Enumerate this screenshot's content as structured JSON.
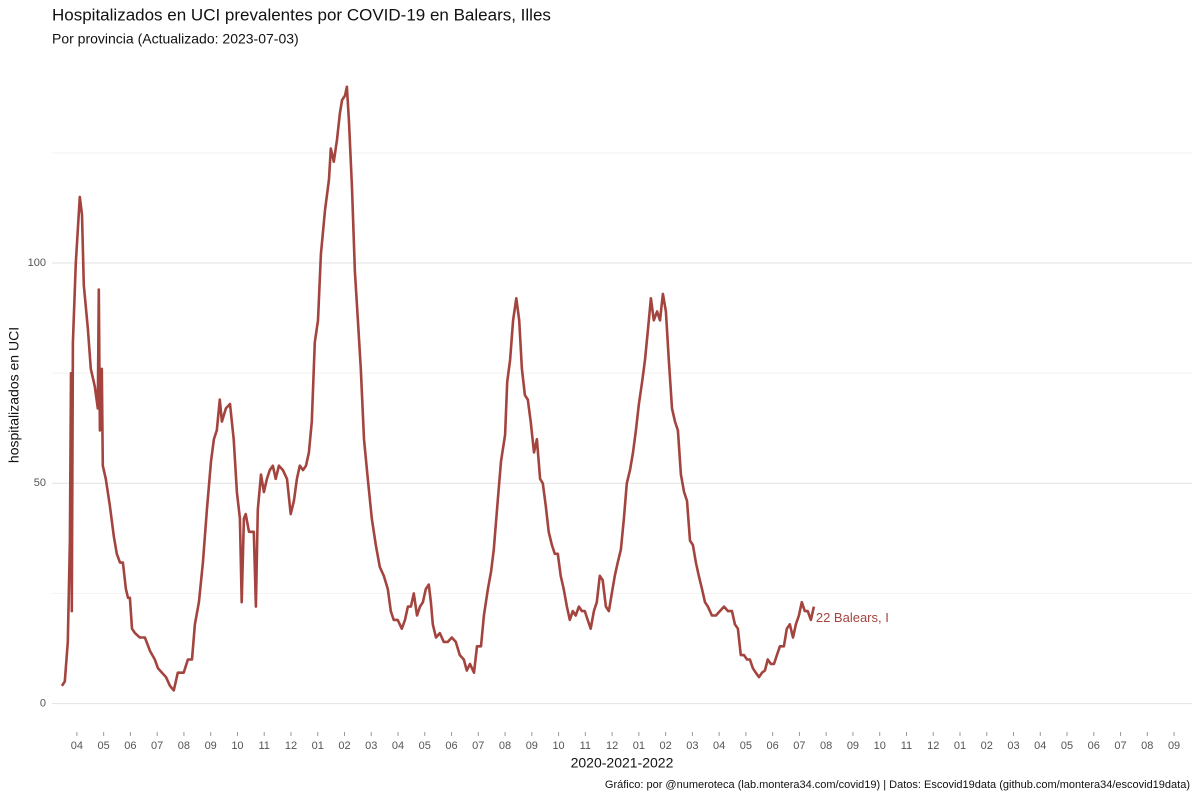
{
  "chart_data": {
    "type": "line",
    "title": "Hospitalizados en UCI prevalentes por COVID-19 en Balears, Illes",
    "subtitle": "Por provincia  (Actualizado: 2023-07-03)",
    "x_label": "2020-2021-2022",
    "y_label": "hospitalizados en UCI",
    "caption": "Gráfico: por @numeroteca (lab.montera34.com/covid19) | Datos: Escovid19data (github.com/montera34/escovid19data)",
    "xlim": [
      3.07,
      45.67
    ],
    "ylim": [
      -6,
      142
    ],
    "yticks": [
      0,
      50,
      100
    ],
    "minor_yticks": [
      25,
      75,
      125
    ],
    "grid": true,
    "xticks": [
      {
        "value": 4,
        "label": "04"
      },
      {
        "value": 5,
        "label": "05"
      },
      {
        "value": 6,
        "label": "06"
      },
      {
        "value": 7,
        "label": "07"
      },
      {
        "value": 8,
        "label": "08"
      },
      {
        "value": 9,
        "label": "09"
      },
      {
        "value": 10,
        "label": "10"
      },
      {
        "value": 11,
        "label": "11"
      },
      {
        "value": 12,
        "label": "12"
      },
      {
        "value": 13,
        "label": "01"
      },
      {
        "value": 14,
        "label": "02"
      },
      {
        "value": 15,
        "label": "03"
      },
      {
        "value": 16,
        "label": "04"
      },
      {
        "value": 17,
        "label": "05"
      },
      {
        "value": 18,
        "label": "06"
      },
      {
        "value": 19,
        "label": "07"
      },
      {
        "value": 20,
        "label": "08"
      },
      {
        "value": 21,
        "label": "09"
      },
      {
        "value": 22,
        "label": "10"
      },
      {
        "value": 23,
        "label": "11"
      },
      {
        "value": 24,
        "label": "12"
      },
      {
        "value": 25,
        "label": "01"
      },
      {
        "value": 26,
        "label": "02"
      },
      {
        "value": 27,
        "label": "03"
      },
      {
        "value": 28,
        "label": "04"
      },
      {
        "value": 29,
        "label": "05"
      },
      {
        "value": 30,
        "label": "06"
      },
      {
        "value": 31,
        "label": "07"
      },
      {
        "value": 32,
        "label": "08"
      },
      {
        "value": 33,
        "label": "09"
      },
      {
        "value": 34,
        "label": "10"
      },
      {
        "value": 35,
        "label": "11"
      },
      {
        "value": 36,
        "label": "12"
      },
      {
        "value": 37,
        "label": "01"
      },
      {
        "value": 38,
        "label": "02"
      },
      {
        "value": 39,
        "label": "03"
      },
      {
        "value": 40,
        "label": "04"
      },
      {
        "value": 41,
        "label": "05"
      },
      {
        "value": 42,
        "label": "06"
      },
      {
        "value": 43,
        "label": "07"
      },
      {
        "value": 44,
        "label": "08"
      },
      {
        "value": 45,
        "label": "09"
      }
    ],
    "x": [
      3.44,
      3.55,
      3.66,
      3.74,
      3.78,
      3.81,
      3.85,
      3.96,
      4.11,
      4.19,
      4.26,
      4.41,
      4.52,
      4.67,
      4.78,
      4.82,
      4.86,
      4.93,
      4.97,
      5.08,
      5.23,
      5.38,
      5.49,
      5.61,
      5.72,
      5.83,
      5.91,
      5.98,
      6.06,
      6.17,
      6.35,
      6.54,
      6.73,
      6.91,
      7.03,
      7.18,
      7.33,
      7.48,
      7.62,
      7.77,
      7.99,
      8.15,
      8.3,
      8.41,
      8.56,
      8.71,
      8.86,
      9.01,
      9.12,
      9.23,
      9.34,
      9.42,
      9.57,
      9.72,
      9.86,
      9.98,
      10.09,
      10.16,
      10.24,
      10.31,
      10.43,
      10.54,
      10.61,
      10.69,
      10.76,
      10.88,
      10.99,
      11.1,
      11.21,
      11.32,
      11.43,
      11.55,
      11.7,
      11.85,
      11.99,
      12.11,
      12.22,
      12.33,
      12.45,
      12.56,
      12.67,
      12.78,
      12.89,
      13.01,
      13.12,
      13.27,
      13.42,
      13.49,
      13.6,
      13.72,
      13.83,
      13.91,
      14.02,
      14.09,
      14.17,
      14.28,
      14.39,
      14.5,
      14.61,
      14.73,
      14.87,
      15.02,
      15.17,
      15.32,
      15.47,
      15.62,
      15.73,
      15.84,
      15.99,
      16.14,
      16.26,
      16.37,
      16.48,
      16.59,
      16.71,
      16.82,
      16.93,
      17.04,
      17.15,
      17.23,
      17.3,
      17.42,
      17.56,
      17.71,
      17.86,
      18.01,
      18.16,
      18.31,
      18.46,
      18.57,
      18.69,
      18.84,
      18.95,
      19.1,
      19.21,
      19.36,
      19.48,
      19.58,
      19.7,
      19.85,
      20.0,
      20.08,
      20.19,
      20.3,
      20.42,
      20.53,
      20.63,
      20.74,
      20.85,
      20.96,
      21.08,
      21.19,
      21.31,
      21.41,
      21.52,
      21.63,
      21.75,
      21.86,
      21.97,
      22.08,
      22.19,
      22.31,
      22.42,
      22.53,
      22.64,
      22.76,
      22.87,
      22.98,
      23.09,
      23.2,
      23.32,
      23.43,
      23.54,
      23.65,
      23.77,
      23.88,
      23.99,
      24.1,
      24.21,
      24.33,
      24.44,
      24.55,
      24.67,
      24.78,
      24.89,
      25.0,
      25.12,
      25.23,
      25.34,
      25.45,
      25.56,
      25.68,
      25.79,
      25.9,
      26.01,
      26.12,
      26.24,
      26.35,
      26.46,
      26.57,
      26.69,
      26.8,
      26.91,
      27.02,
      27.13,
      27.24,
      27.36,
      27.47,
      27.58,
      27.73,
      27.88,
      28.03,
      28.18,
      28.33,
      28.48,
      28.59,
      28.7,
      28.81,
      28.93,
      29.04,
      29.15,
      29.26,
      29.37,
      29.49,
      29.6,
      29.71,
      29.82,
      29.93,
      30.05,
      30.16,
      30.27,
      30.42,
      30.53,
      30.64,
      30.76,
      30.87,
      30.98,
      31.09,
      31.2,
      31.31,
      31.43,
      31.54
    ],
    "series": [
      {
        "name": "22 Balears, I",
        "color": "#a4443f",
        "values": [
          4,
          5,
          14,
          37,
          75,
          21,
          82,
          100,
          115,
          111,
          95,
          85,
          76,
          72,
          67,
          94,
          62,
          76,
          54,
          51,
          45,
          38,
          34,
          32,
          32,
          26,
          24,
          24,
          17,
          16,
          15,
          15,
          12,
          10,
          8,
          7,
          6,
          4,
          3,
          7,
          7,
          10,
          10,
          18,
          23,
          32,
          44,
          55,
          60,
          62,
          69,
          64,
          67,
          68,
          60,
          48,
          42,
          23,
          42,
          43,
          39,
          39,
          39,
          22,
          44,
          52,
          48,
          51,
          53,
          54,
          51,
          54,
          53,
          51,
          43,
          46,
          51,
          54,
          53,
          54,
          57,
          64,
          82,
          87,
          102,
          112,
          119,
          126,
          123,
          128,
          134,
          137,
          138,
          140,
          132,
          117,
          98,
          87,
          76,
          60,
          51,
          42,
          36,
          31,
          29,
          26,
          21,
          19,
          19,
          17,
          19,
          22,
          22,
          25,
          20,
          22,
          23,
          26,
          27,
          23,
          18,
          15,
          16,
          14,
          14,
          15,
          14,
          11,
          10,
          7.5,
          9,
          7,
          13,
          13,
          20,
          26,
          30,
          35,
          44,
          55,
          61,
          73,
          78,
          87,
          92,
          87,
          76,
          70,
          69,
          64,
          57,
          60,
          51,
          50,
          45,
          39,
          36,
          34,
          34,
          29,
          26,
          22,
          19,
          21,
          20,
          22,
          21,
          21,
          19,
          17,
          21,
          23,
          29,
          28,
          22,
          21,
          25,
          29,
          32,
          35,
          42,
          50,
          53,
          57,
          62,
          68,
          73,
          78,
          85,
          92,
          87,
          89,
          87,
          93,
          89,
          78,
          67,
          64,
          62,
          52,
          48,
          46,
          37,
          36,
          32,
          29,
          26,
          23,
          22,
          20,
          20,
          21,
          22,
          21,
          21,
          18,
          17,
          11,
          11,
          10,
          10,
          8,
          7,
          6,
          7,
          7.5,
          10,
          9,
          9,
          11,
          13,
          13,
          17,
          18,
          15,
          18,
          20,
          23,
          21,
          21,
          19,
          22
        ]
      }
    ]
  }
}
